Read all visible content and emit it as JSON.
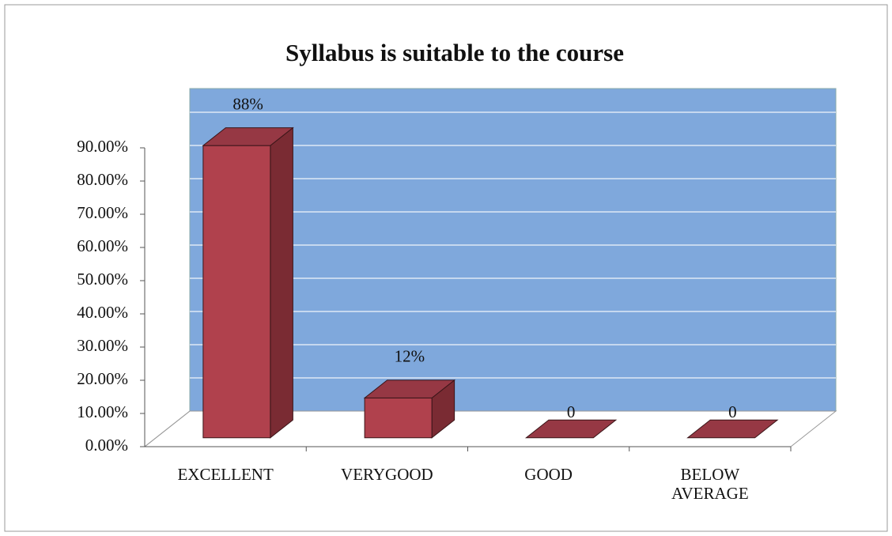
{
  "chart_data": {
    "type": "bar3d",
    "title": "Syllabus is suitable to the course",
    "categories": [
      "EXCELLENT",
      "VERYGOOD",
      "GOOD",
      "BELOW AVERAGE"
    ],
    "values": [
      88,
      12,
      0,
      0
    ],
    "value_labels": [
      "88%",
      "12%",
      "0",
      "0"
    ],
    "color": "#b0414d",
    "wall_color": "#7fa8dc",
    "ylim": [
      0,
      90
    ],
    "yticks": [
      {
        "value": 0,
        "label": "0.00%"
      },
      {
        "value": 10,
        "label": "10.00%"
      },
      {
        "value": 20,
        "label": "20.00%"
      },
      {
        "value": 30,
        "label": "30.00%"
      },
      {
        "value": 40,
        "label": "40.00%"
      },
      {
        "value": 50,
        "label": "50.00%"
      },
      {
        "value": 60,
        "label": "60.00%"
      },
      {
        "value": 70,
        "label": "70.00%"
      },
      {
        "value": 80,
        "label": "80.00%"
      },
      {
        "value": 90,
        "label": "90.00%"
      }
    ],
    "grid": true
  }
}
